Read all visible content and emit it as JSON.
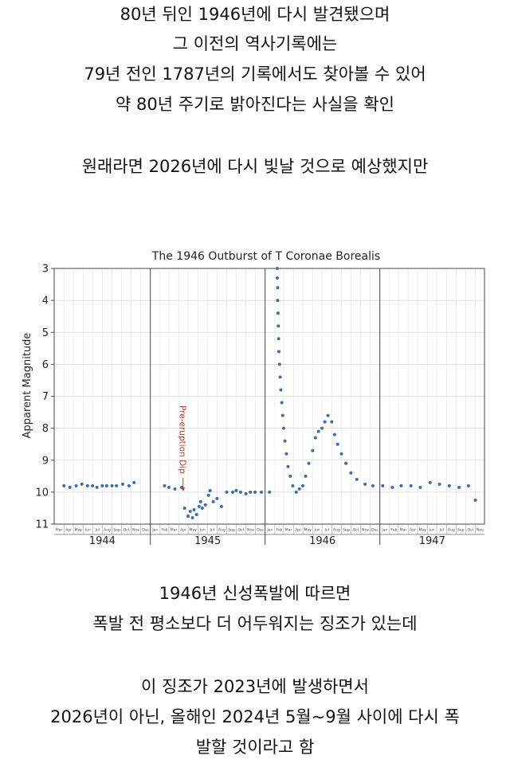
{
  "intro_lines": [
    "80년 뒤인 1946년에 다시 발견됐으며",
    "그 이전의 역사기록에는",
    "79년 전인 1787년의 기록에서도 찾아볼 수 있어",
    "약 80년 주기로 밝아진다는 사실을 확인"
  ],
  "expectation_line": "원래라면 2026년에 다시 빛날 것으로 예상했지만",
  "after_lines": [
    "1946년 신성폭발에 따르면",
    "폭발 전 평소보다 더 어두워지는 징조가 있는데"
  ],
  "closing_lines": [
    "이 징조가 2023년에 발생하면서",
    "2026년이 아닌, 올해인 2024년 5월~9월 사이에 다시 폭",
    "발할 것이라고 함"
  ],
  "chart_data": {
    "type": "scatter",
    "title": "The 1946 Outburst of T Coronae Borealis",
    "ylabel": "Apparent Magnitude",
    "ylim": [
      11,
      3
    ],
    "y_inverted": true,
    "y_ticks": [
      3,
      4,
      5,
      6,
      7,
      8,
      9,
      10,
      11
    ],
    "xlim": [
      "1944-03-01",
      "1947-11-30"
    ],
    "year_labels": [
      "1944",
      "1945",
      "1946",
      "1947"
    ],
    "month_ticks": [
      "Jan",
      "Feb",
      "Mar",
      "Apr",
      "May",
      "Jun",
      "Jul",
      "Aug",
      "Sep",
      "Oct",
      "Nov",
      "Dec"
    ],
    "grid": true,
    "marker_color": "#3f6cad",
    "annotation": {
      "text": "Pre-eruption Dip",
      "date": "1945-04-15",
      "magnitude": 10.1,
      "color": "#c0392b"
    },
    "series": [
      {
        "points": [
          [
            "1944-04-01",
            9.8
          ],
          [
            "1944-04-20",
            9.85
          ],
          [
            "1944-05-10",
            9.8
          ],
          [
            "1944-05-28",
            9.75
          ],
          [
            "1944-06-15",
            9.8
          ],
          [
            "1944-07-01",
            9.8
          ],
          [
            "1944-07-15",
            9.85
          ],
          [
            "1944-08-01",
            9.8
          ],
          [
            "1944-08-15",
            9.8
          ],
          [
            "1944-09-01",
            9.8
          ],
          [
            "1944-09-15",
            9.8
          ],
          [
            "1944-10-05",
            9.75
          ],
          [
            "1944-10-25",
            9.8
          ],
          [
            "1944-11-10",
            9.7
          ],
          [
            "1945-02-15",
            9.8
          ],
          [
            "1945-03-01",
            9.85
          ],
          [
            "1945-03-20",
            9.9
          ],
          [
            "1945-04-10",
            9.85
          ],
          [
            "1945-04-20",
            10.5
          ],
          [
            "1945-05-01",
            10.75
          ],
          [
            "1945-05-08",
            10.6
          ],
          [
            "1945-05-15",
            10.8
          ],
          [
            "1945-05-20",
            10.55
          ],
          [
            "1945-05-28",
            10.7
          ],
          [
            "1945-06-05",
            10.45
          ],
          [
            "1945-06-10",
            10.3
          ],
          [
            "1945-06-15",
            10.5
          ],
          [
            "1945-06-25",
            10.4
          ],
          [
            "1945-07-05",
            10.1
          ],
          [
            "1945-07-10",
            9.95
          ],
          [
            "1945-07-20",
            10.3
          ],
          [
            "1945-08-01",
            10.2
          ],
          [
            "1945-08-15",
            10.45
          ],
          [
            "1945-09-01",
            10.0
          ],
          [
            "1945-09-20",
            10.0
          ],
          [
            "1945-10-01",
            9.95
          ],
          [
            "1945-10-15",
            10.0
          ],
          [
            "1945-11-01",
            10.05
          ],
          [
            "1945-11-15",
            10.0
          ],
          [
            "1945-11-30",
            10.0
          ],
          [
            "1945-12-20",
            10.0
          ],
          [
            "1946-01-15",
            10.0
          ],
          [
            "1946-02-09",
            3.0
          ],
          [
            "1946-02-09",
            3.3
          ],
          [
            "1946-02-10",
            3.6
          ],
          [
            "1946-02-10",
            4.0
          ],
          [
            "1946-02-11",
            4.4
          ],
          [
            "1946-02-12",
            4.8
          ],
          [
            "1946-02-13",
            5.2
          ],
          [
            "1946-02-14",
            5.6
          ],
          [
            "1946-02-16",
            6.0
          ],
          [
            "1946-02-18",
            6.4
          ],
          [
            "1946-02-20",
            6.8
          ],
          [
            "1946-02-23",
            7.2
          ],
          [
            "1946-02-26",
            7.6
          ],
          [
            "1946-03-01",
            8.0
          ],
          [
            "1946-03-05",
            8.4
          ],
          [
            "1946-03-10",
            8.8
          ],
          [
            "1946-03-15",
            9.2
          ],
          [
            "1946-03-22",
            9.5
          ],
          [
            "1946-03-30",
            9.8
          ],
          [
            "1946-04-10",
            10.0
          ],
          [
            "1946-04-20",
            9.9
          ],
          [
            "1946-05-01",
            9.8
          ],
          [
            "1946-05-10",
            9.5
          ],
          [
            "1946-05-20",
            9.1
          ],
          [
            "1946-06-01",
            8.7
          ],
          [
            "1946-06-10",
            8.3
          ],
          [
            "1946-06-20",
            8.1
          ],
          [
            "1946-07-01",
            8.0
          ],
          [
            "1946-07-10",
            7.8
          ],
          [
            "1946-07-20",
            7.6
          ],
          [
            "1946-08-01",
            7.8
          ],
          [
            "1946-08-10",
            8.2
          ],
          [
            "1946-08-20",
            8.5
          ],
          [
            "1946-09-01",
            8.8
          ],
          [
            "1946-09-15",
            9.1
          ],
          [
            "1946-10-01",
            9.4
          ],
          [
            "1946-10-20",
            9.6
          ],
          [
            "1946-11-15",
            9.75
          ],
          [
            "1946-12-10",
            9.8
          ],
          [
            "1947-01-10",
            9.8
          ],
          [
            "1947-02-10",
            9.85
          ],
          [
            "1947-03-10",
            9.8
          ],
          [
            "1947-04-10",
            9.8
          ],
          [
            "1947-05-10",
            9.85
          ],
          [
            "1947-06-10",
            9.7
          ],
          [
            "1947-07-10",
            9.75
          ],
          [
            "1947-08-10",
            9.8
          ],
          [
            "1947-09-10",
            9.85
          ],
          [
            "1947-10-10",
            9.8
          ],
          [
            "1947-11-01",
            10.25
          ]
        ]
      }
    ]
  }
}
